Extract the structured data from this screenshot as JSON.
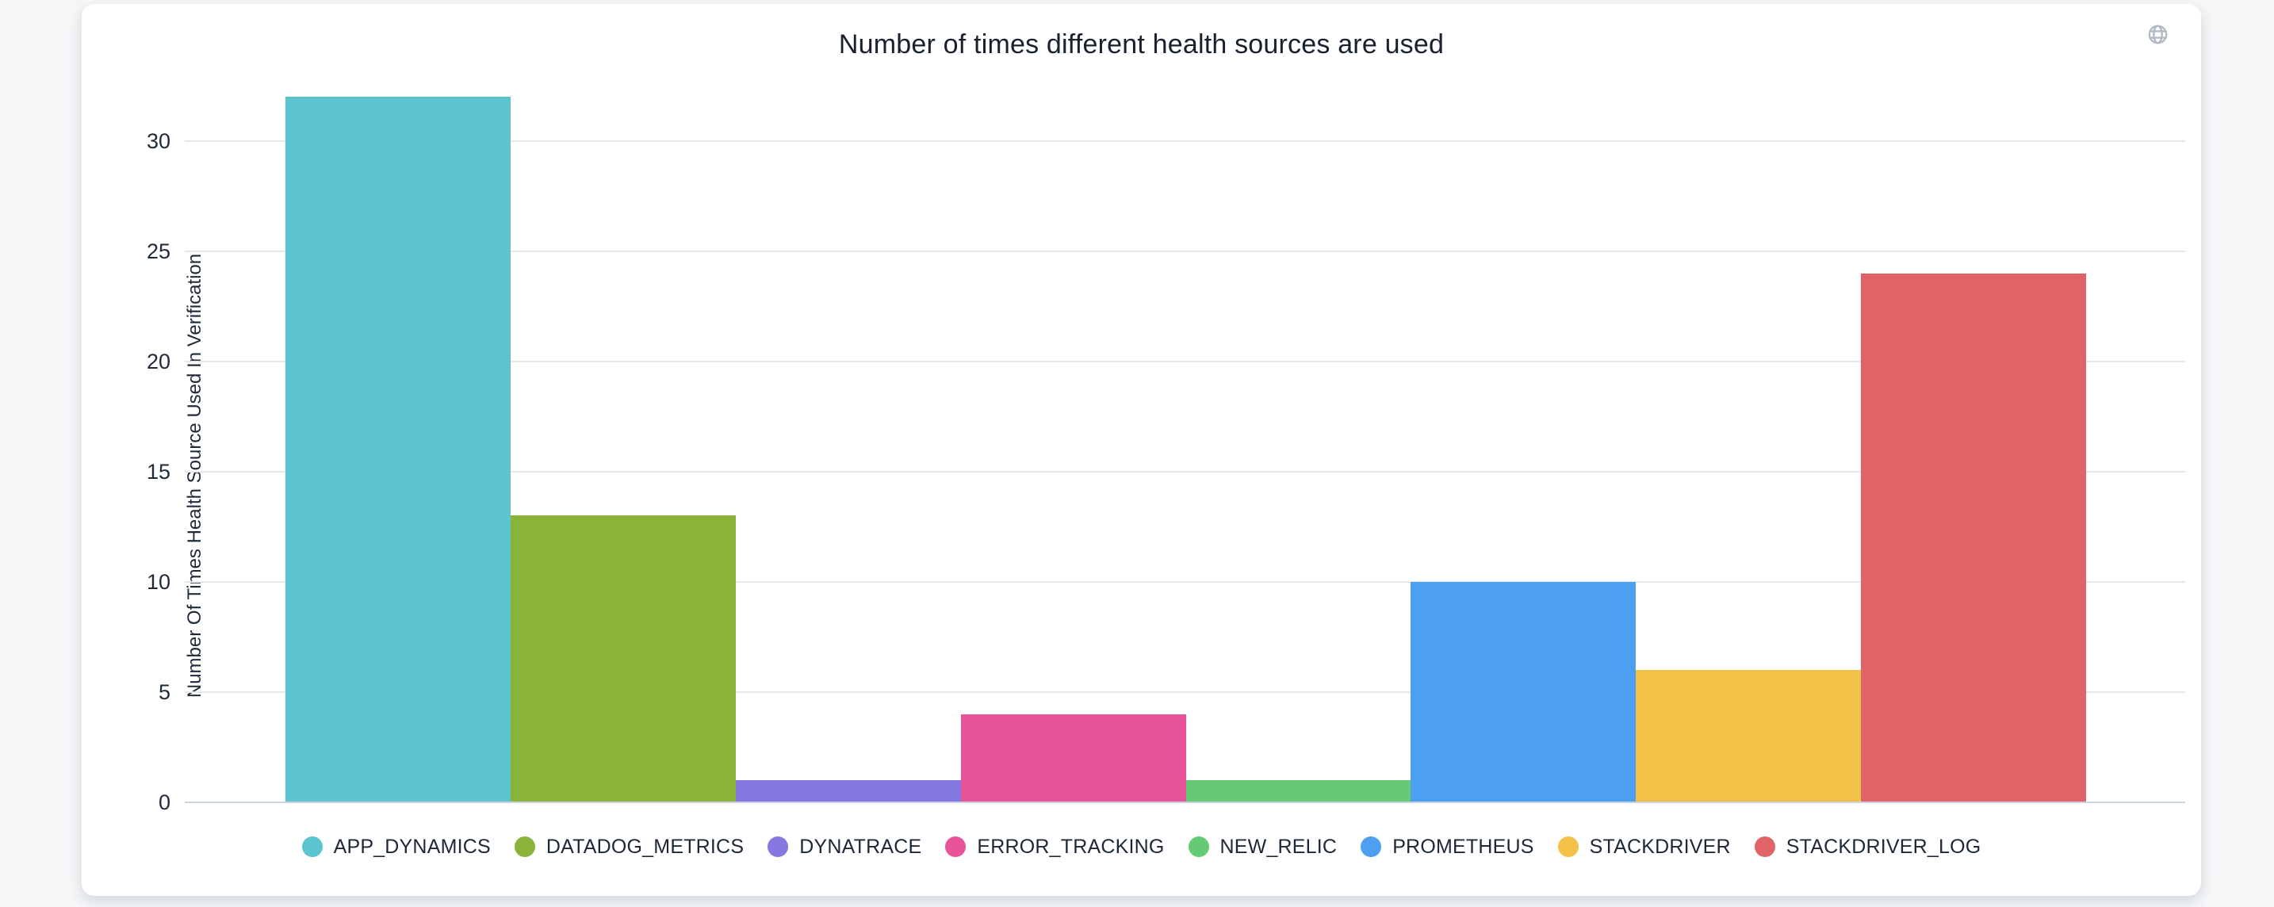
{
  "card": {
    "title": "Number of times different health sources are used"
  },
  "chart_data": {
    "type": "bar",
    "title": "Number of times different health sources are used",
    "xlabel": "",
    "ylabel": "Number Of Times Health Source Used In Verification",
    "categories": [
      "APP_DYNAMICS",
      "DATADOG_METRICS",
      "DYNATRACE",
      "ERROR_TRACKING",
      "NEW_RELIC",
      "PROMETHEUS",
      "STACKDRIVER",
      "STACKDRIVER_LOG"
    ],
    "values": [
      32,
      13,
      1,
      4,
      1,
      10,
      6,
      24
    ],
    "colors": [
      "#5bc4ce",
      "#8ab339",
      "#8577e1",
      "#e85499",
      "#66c974",
      "#4da0ef",
      "#f2c147",
      "#e06467"
    ],
    "yticks": [
      0,
      5,
      10,
      15,
      20,
      25,
      30
    ],
    "ylim": [
      0,
      32
    ],
    "grid": true,
    "legend_position": "bottom",
    "gridline_color": "#e7e7e7",
    "baseline_color": "#ccd3e3",
    "text_color": "#1e2a3a",
    "icon_color": "#b2b9c5"
  }
}
